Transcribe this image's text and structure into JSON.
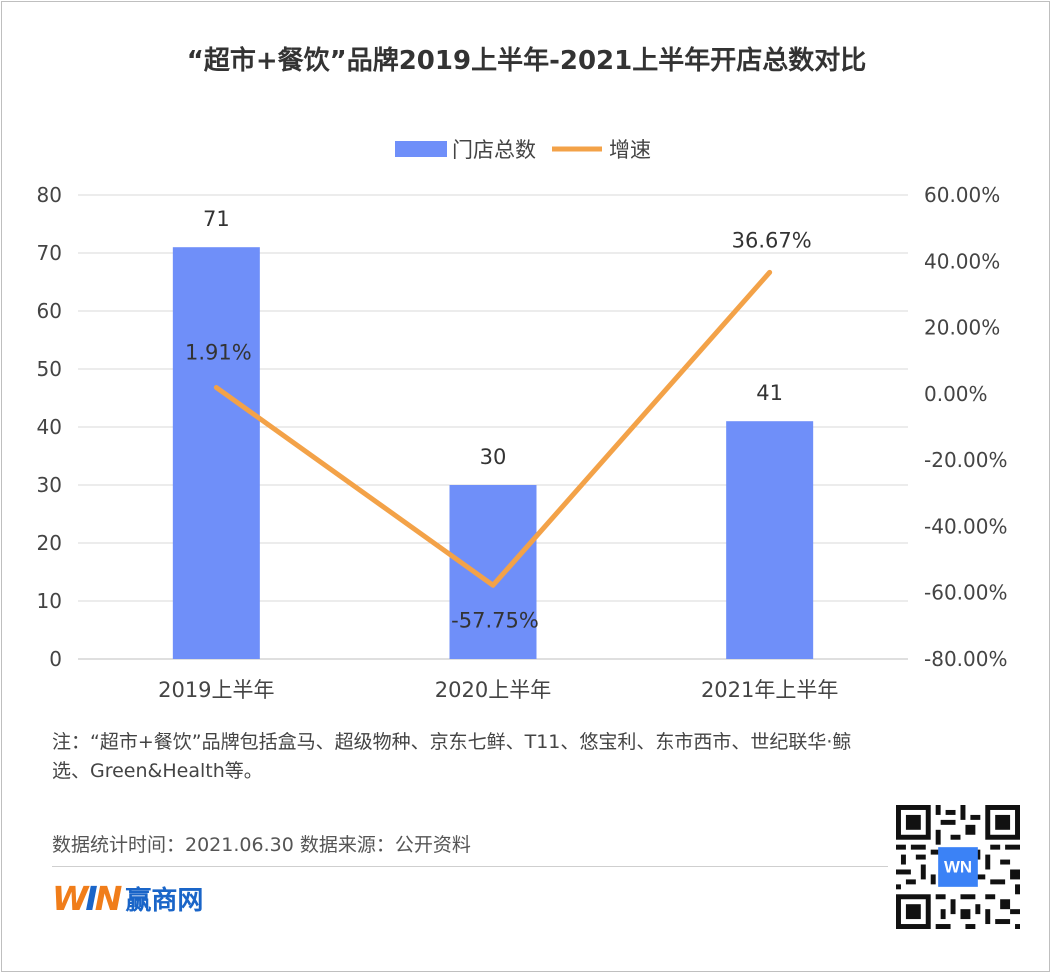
{
  "title": "“超市+餐饮”品牌2019上半年-2021上半年开店总数对比",
  "legend": {
    "bar": "门店总数",
    "line": "增速"
  },
  "left_axis_ticks": [
    "0",
    "10",
    "20",
    "30",
    "40",
    "50",
    "60",
    "70",
    "80"
  ],
  "right_axis_ticks": [
    "-80.00%",
    "-60.00%",
    "-40.00%",
    "-20.00%",
    "0.00%",
    "20.00%",
    "40.00%",
    "60.00%"
  ],
  "bar_labels": [
    "71",
    "30",
    "41"
  ],
  "line_labels": [
    "1.91%",
    "-57.75%",
    "36.67%"
  ],
  "categories_text": [
    "2019上半年",
    "2020上半年",
    "2021年上半年"
  ],
  "chart_data": {
    "type": "bar",
    "categories": [
      "2019上半年",
      "2020上半年",
      "2021年上半年"
    ],
    "series": [
      {
        "name": "门店总数",
        "type": "bar",
        "axis": "left",
        "values": [
          71,
          30,
          41
        ],
        "color": "#6f8ff9"
      },
      {
        "name": "增速",
        "type": "line",
        "axis": "right",
        "values": [
          1.91,
          -57.75,
          36.67
        ],
        "unit": "%",
        "color": "#f3a248"
      }
    ],
    "ylim_left": [
      0,
      80
    ],
    "ylim_right": [
      -80,
      60
    ],
    "grid": true,
    "legend_position": "top-center"
  },
  "note": "注：“超市+餐饮”品牌包括盒马、超级物种、京东七鲜、T11、悠宝利、东市西市、世纪联华·鲸选、Green&Health等。",
  "source": "数据统计时间：2021.06.30  数据来源：公开资料",
  "brand": {
    "name": "赢商网",
    "mark": "WIN"
  }
}
